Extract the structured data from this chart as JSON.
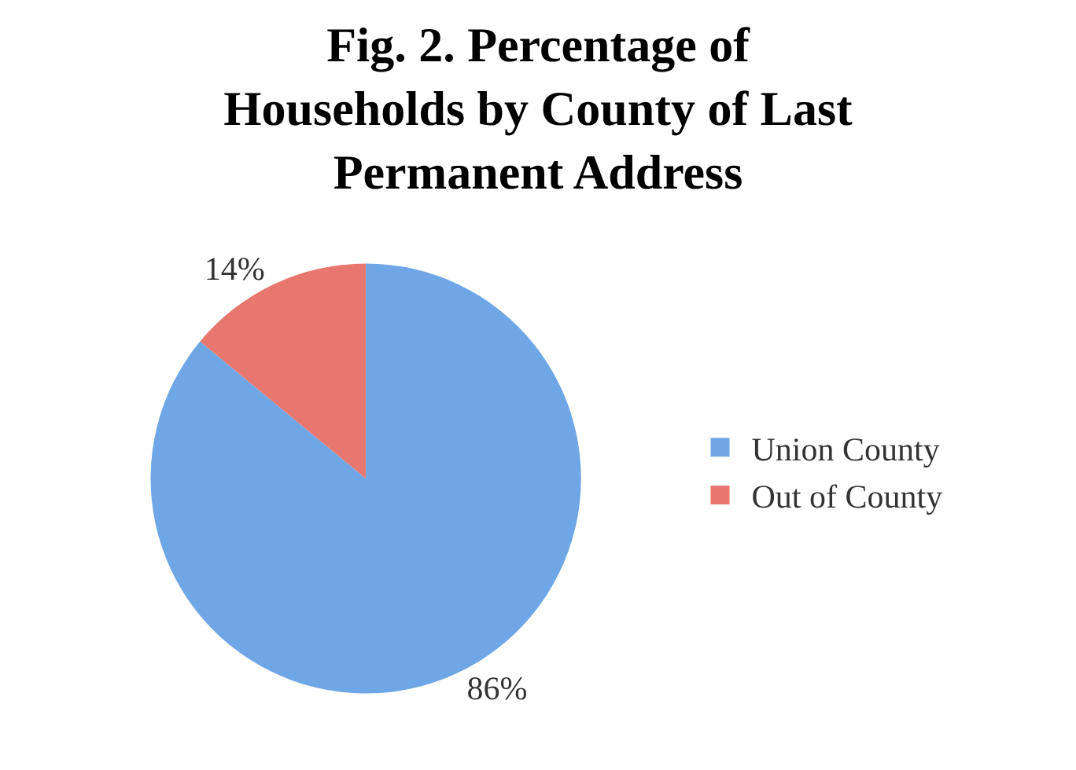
{
  "chart_data": {
    "type": "pie",
    "title": "Fig. 2. Percentage of Households by County of Last Permanent Address",
    "categories": [
      "Union County",
      "Out of County"
    ],
    "values": [
      86,
      14
    ],
    "colors": [
      "#6ea6e6",
      "#e8776f"
    ],
    "value_labels": [
      "86%",
      "14%"
    ],
    "legend": "right"
  }
}
